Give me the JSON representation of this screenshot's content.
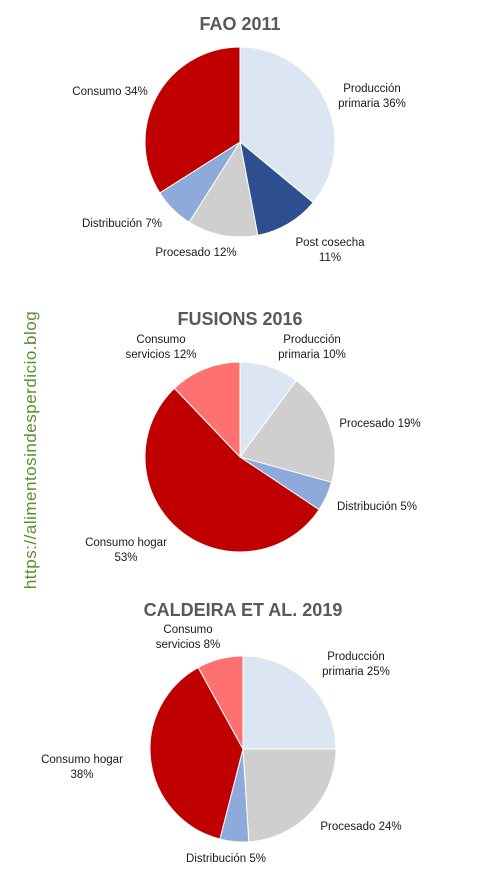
{
  "watermark": "https://alimentosindesperdicio.blog",
  "chart_data": [
    {
      "type": "pie",
      "title": "FAO 2011",
      "slices": [
        {
          "label": [
            "Producción",
            "primaria 36%"
          ],
          "value": 36,
          "color": "#dce6f2"
        },
        {
          "label": [
            "Post cosecha",
            "11%"
          ],
          "value": 11,
          "color": "#2e4f8f"
        },
        {
          "label": [
            "Procesado 12%"
          ],
          "value": 12,
          "color": "#cfcfcf"
        },
        {
          "label": [
            "Distribución 7%"
          ],
          "value": 7,
          "color": "#8eaadb"
        },
        {
          "label": [
            "Consumo 34%"
          ],
          "value": 34,
          "color": "#c00000"
        }
      ]
    },
    {
      "type": "pie",
      "title": "FUSIONS 2016",
      "slices": [
        {
          "label": [
            "Producción",
            "primaria 10%"
          ],
          "value": 10,
          "color": "#dce6f2"
        },
        {
          "label": [
            "Procesado 19%"
          ],
          "value": 19,
          "color": "#cfcfcf"
        },
        {
          "label": [
            "Distribución 5%"
          ],
          "value": 5,
          "color": "#8eaadb"
        },
        {
          "label": [
            "Consumo hogar",
            "53%"
          ],
          "value": 53,
          "color": "#c00000"
        },
        {
          "label": [
            "Consumo",
            "servicios  12%"
          ],
          "value": 12,
          "color": "#ff7070"
        }
      ]
    },
    {
      "type": "pie",
      "title": "CALDEIRA ET AL. 2019",
      "slices": [
        {
          "label": [
            "Producción",
            "primaria 25%"
          ],
          "value": 25,
          "color": "#dce6f2"
        },
        {
          "label": [
            "Procesado 24%"
          ],
          "value": 24,
          "color": "#cfcfcf"
        },
        {
          "label": [
            "Distribución 5%"
          ],
          "value": 5,
          "color": "#8eaadb"
        },
        {
          "label": [
            "Consumo hogar",
            "38%"
          ],
          "value": 38,
          "color": "#c00000"
        },
        {
          "label": [
            "Consumo",
            "servicios  8%"
          ],
          "value": 8,
          "color": "#ff7070"
        }
      ]
    }
  ]
}
